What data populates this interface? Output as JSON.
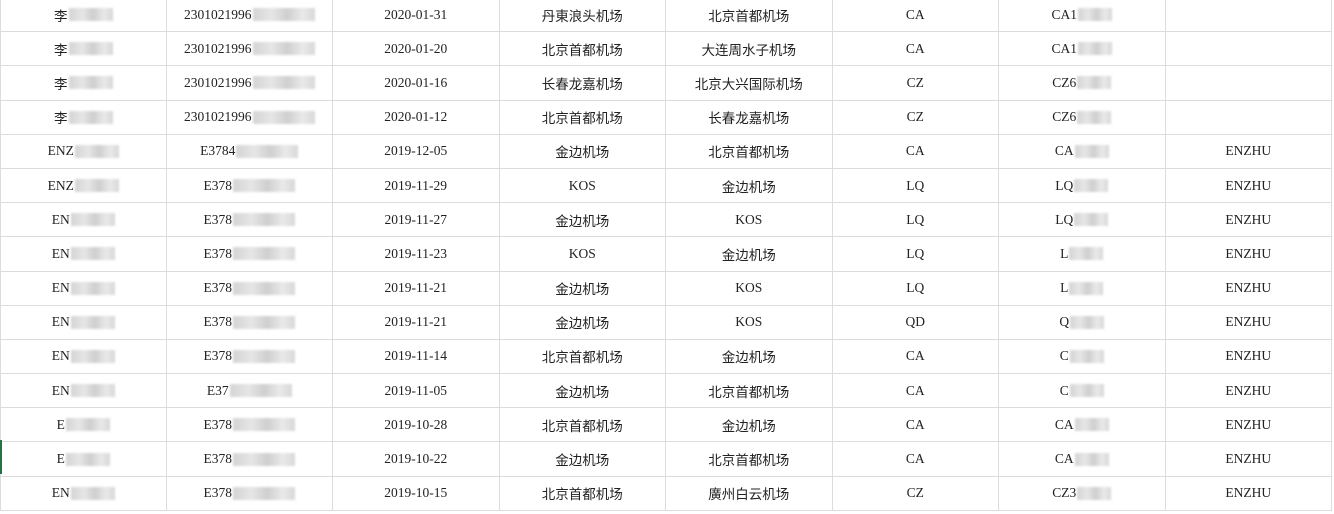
{
  "sheet": {
    "rows": [
      [
        "李",
        "2301021996",
        "2020-01-31",
        "丹東浪头机场",
        "北京首都机场",
        "CA",
        "CA1",
        ""
      ],
      [
        "李",
        "2301021996",
        "2020-01-20",
        "北京首都机场",
        "大连周水子机场",
        "CA",
        "CA1",
        ""
      ],
      [
        "李",
        "2301021996",
        "2020-01-16",
        "长春龙嘉机场",
        "北京大兴国际机场",
        "CZ",
        "CZ6",
        ""
      ],
      [
        "李",
        "2301021996",
        "2020-01-12",
        "北京首都机场",
        "长春龙嘉机场",
        "CZ",
        "CZ6",
        ""
      ],
      [
        "ENZ",
        "E3784",
        "2019-12-05",
        "金边机场",
        "北京首都机场",
        "CA",
        "CA",
        "ENZHU"
      ],
      [
        "ENZ",
        "E378",
        "2019-11-29",
        "KOS",
        "金边机场",
        "LQ",
        "LQ",
        "ENZHU"
      ],
      [
        "EN",
        "E378",
        "2019-11-27",
        "金边机场",
        "KOS",
        "LQ",
        "LQ",
        "ENZHU"
      ],
      [
        "EN",
        "E378",
        "2019-11-23",
        "KOS",
        "金边机场",
        "LQ",
        "L",
        "ENZHU"
      ],
      [
        "EN",
        "E378",
        "2019-11-21",
        "金边机场",
        "KOS",
        "LQ",
        "L",
        "ENZHU"
      ],
      [
        "EN",
        "E378",
        "2019-11-21",
        "金边机场",
        "KOS",
        "QD",
        "Q",
        "ENZHU"
      ],
      [
        "EN",
        "E378",
        "2019-11-14",
        "北京首都机场",
        "金边机场",
        "CA",
        "C",
        "ENZHU"
      ],
      [
        "EN",
        "E37",
        "2019-11-05",
        "金边机场",
        "北京首都机场",
        "CA",
        "C",
        "ENZHU"
      ],
      [
        "E",
        "E378",
        "2019-10-28",
        "北京首都机场",
        "金边机场",
        "CA",
        "CA",
        "ENZHU"
      ],
      [
        "E",
        "E378",
        "2019-10-22",
        "金边机场",
        "北京首都机场",
        "CA",
        "CA",
        "ENZHU"
      ],
      [
        "EN",
        "E378",
        "2019-10-15",
        "北京首都机场",
        "廣州白云机场",
        "CZ",
        "CZ3",
        "ENZHU"
      ]
    ],
    "redacted_columns": [
      0,
      1,
      6
    ],
    "grid_color": "#dcdcdc",
    "selection_color": "#217346"
  }
}
